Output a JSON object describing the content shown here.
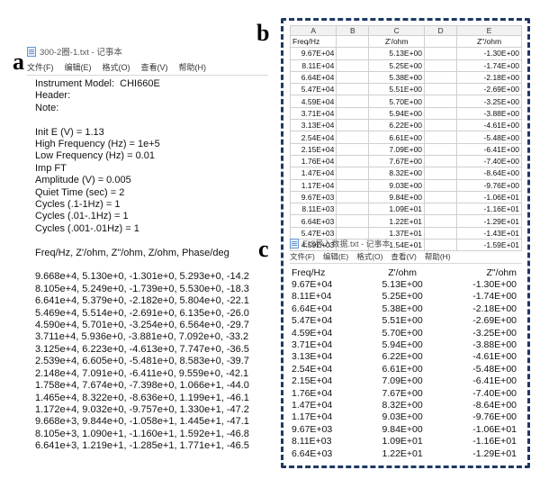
{
  "labels": {
    "a": "a",
    "b": "b",
    "c": "c"
  },
  "notepad_a": {
    "title": "300-2圈-1.txt - 记事本",
    "menu": [
      "文件(F)",
      "编辑(E)",
      "格式(O)",
      "查看(V)",
      "帮助(H)"
    ],
    "lines": [
      "Instrument Model:  CHI660E",
      "Header:",
      "Note:",
      "",
      "Init E (V) = 1.13",
      "High Frequency (Hz) = 1e+5",
      "Low Frequency (Hz) = 0.01",
      "Imp FT",
      "Amplitude (V) = 0.005",
      "Quiet Time (sec) = 2",
      "Cycles (.1-1Hz) = 1",
      "Cycles (.01-.1Hz) = 1",
      "Cycles (.001-.01Hz) = 1",
      "",
      "Freq/Hz, Z'/ohm, Z\"/ohm, Z/ohm, Phase/deg",
      "",
      "9.668e+4, 5.130e+0, -1.301e+0, 5.293e+0, -14.2",
      "8.105e+4, 5.249e+0, -1.739e+0, 5.530e+0, -18.3",
      "6.641e+4, 5.379e+0, -2.182e+0, 5.804e+0, -22.1",
      "5.469e+4, 5.514e+0, -2.691e+0, 6.135e+0, -26.0",
      "4.590e+4, 5.701e+0, -3.254e+0, 6.564e+0, -29.7",
      "3.711e+4, 5.936e+0, -3.881e+0, 7.092e+0, -33.2",
      "3.125e+4, 6.223e+0, -4.613e+0, 7.747e+0, -36.5",
      "2.539e+4, 6.605e+0, -5.481e+0, 8.583e+0, -39.7",
      "2.148e+4, 7.091e+0, -6.411e+0, 9.559e+0, -42.1",
      "1.758e+4, 7.674e+0, -7.398e+0, 1.066e+1, -44.0",
      "1.465e+4, 8.322e+0, -8.636e+0, 1.199e+1, -46.1",
      "1.172e+4, 9.032e+0, -9.757e+0, 1.330e+1, -47.2",
      "9.668e+3, 9.844e+0, -1.058e+1, 1.445e+1, -47.1",
      "8.105e+3, 1.090e+1, -1.160e+1, 1.592e+1, -46.8",
      "6.641e+3, 1.219e+1, -1.285e+1, 1.771e+1, -46.5"
    ]
  },
  "sheet_b": {
    "columns": [
      "A",
      "B",
      "C",
      "D",
      "E"
    ],
    "header_row": [
      "Freq/Hz",
      "",
      "Z'/ohm",
      "",
      "Z\"/ohm"
    ],
    "rows": [
      [
        "9.67E+04",
        "",
        "5.13E+00",
        "",
        "-1.30E+00"
      ],
      [
        "8.11E+04",
        "",
        "5.25E+00",
        "",
        "-1.74E+00"
      ],
      [
        "6.64E+04",
        "",
        "5.38E+00",
        "",
        "-2.18E+00"
      ],
      [
        "5.47E+04",
        "",
        "5.51E+00",
        "",
        "-2.69E+00"
      ],
      [
        "4.59E+04",
        "",
        "5.70E+00",
        "",
        "-3.25E+00"
      ],
      [
        "3.71E+04",
        "",
        "5.94E+00",
        "",
        "-3.88E+00"
      ],
      [
        "3.13E+04",
        "",
        "6.22E+00",
        "",
        "-4.61E+00"
      ],
      [
        "2.54E+04",
        "",
        "6.61E+00",
        "",
        "-5.48E+00"
      ],
      [
        "2.15E+04",
        "",
        "7.09E+00",
        "",
        "-6.41E+00"
      ],
      [
        "1.76E+04",
        "",
        "7.67E+00",
        "",
        "-7.40E+00"
      ],
      [
        "1.47E+04",
        "",
        "8.32E+00",
        "",
        "-8.64E+00"
      ],
      [
        "1.17E+04",
        "",
        "9.03E+00",
        "",
        "-9.76E+00"
      ],
      [
        "9.67E+03",
        "",
        "9.84E+00",
        "",
        "-1.06E+01"
      ],
      [
        "8.11E+03",
        "",
        "1.09E+01",
        "",
        "-1.16E+01"
      ],
      [
        "6.64E+03",
        "",
        "1.22E+01",
        "",
        "-1.29E+01"
      ],
      [
        "5.47E+03",
        "",
        "1.37E+01",
        "",
        "-1.43E+01"
      ],
      [
        "4.59E+03",
        "",
        "1.54E+01",
        "",
        "-1.59E+01"
      ]
    ]
  },
  "notepad_c": {
    "title": "EIS导入数据.txt - 记事本",
    "menu": [
      "文件(F)",
      "编辑(E)",
      "格式(O)",
      "查看(V)",
      "帮助(H)"
    ],
    "headers": [
      "Freq/Hz",
      "Z'/ohm",
      "Z\"/ohm"
    ],
    "rows": [
      [
        "9.67E+04",
        "5.13E+00",
        "-1.30E+00"
      ],
      [
        "8.11E+04",
        "5.25E+00",
        "-1.74E+00"
      ],
      [
        "6.64E+04",
        "5.38E+00",
        "-2.18E+00"
      ],
      [
        "5.47E+04",
        "5.51E+00",
        "-2.69E+00"
      ],
      [
        "4.59E+04",
        "5.70E+00",
        "-3.25E+00"
      ],
      [
        "3.71E+04",
        "5.94E+00",
        "-3.88E+00"
      ],
      [
        "3.13E+04",
        "6.22E+00",
        "-4.61E+00"
      ],
      [
        "2.54E+04",
        "6.61E+00",
        "-5.48E+00"
      ],
      [
        "2.15E+04",
        "7.09E+00",
        "-6.41E+00"
      ],
      [
        "1.76E+04",
        "7.67E+00",
        "-7.40E+00"
      ],
      [
        "1.47E+04",
        "8.32E+00",
        "-8.64E+00"
      ],
      [
        "1.17E+04",
        "9.03E+00",
        "-9.76E+00"
      ],
      [
        "9.67E+03",
        "9.84E+00",
        "-1.06E+01"
      ],
      [
        "8.11E+03",
        "1.09E+01",
        "-1.16E+01"
      ],
      [
        "6.64E+03",
        "1.22E+01",
        "-1.29E+01"
      ]
    ]
  },
  "icons": {
    "notepad": "notepad-icon"
  },
  "colors": {
    "frame": "#1f3864",
    "grid": "#cfcfcf"
  }
}
